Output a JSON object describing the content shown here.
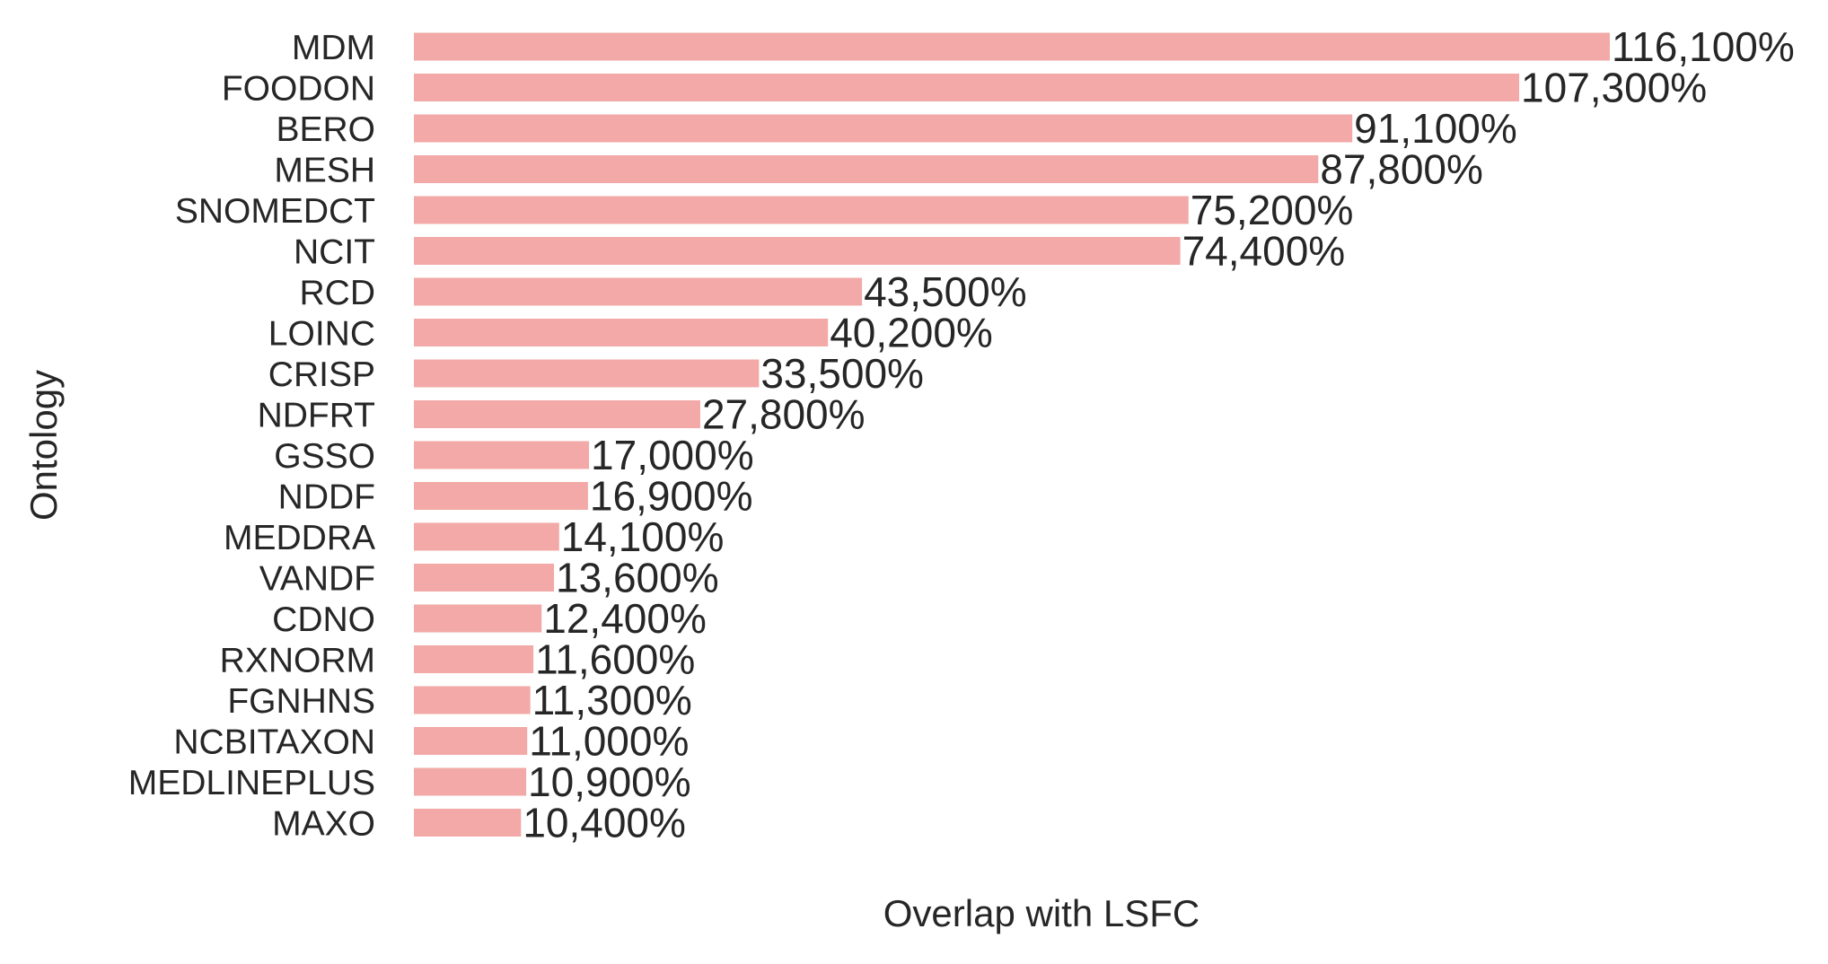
{
  "chart_data": {
    "type": "bar",
    "orientation": "horizontal",
    "xlabel": "Overlap with LSFC",
    "ylabel": "Ontology",
    "categories": [
      "MDM",
      "FOODON",
      "BERO",
      "MESH",
      "SNOMEDCT",
      "NCIT",
      "RCD",
      "LOINC",
      "CRISP",
      "NDFRT",
      "GSSO",
      "NDDF",
      "MEDDRA",
      "VANDF",
      "CDNO",
      "RXNORM",
      "FGNHNS",
      "NCBITAXON",
      "MEDLINEPLUS",
      "MAXO"
    ],
    "values": [
      116.1,
      107.3,
      91.1,
      87.8,
      75.2,
      74.4,
      43.5,
      40.2,
      33.5,
      27.8,
      17.0,
      16.9,
      14.1,
      13.6,
      12.4,
      11.6,
      11.3,
      11.0,
      10.9,
      10.4
    ],
    "value_labels": [
      "116,100%",
      "107,300%",
      "91,100%",
      "87,800%",
      "75,200%",
      "74,400%",
      "43,500%",
      "40,200%",
      "33,500%",
      "27,800%",
      "17,000%",
      "16,900%",
      "14,100%",
      "13,600%",
      "12,400%",
      "11,600%",
      "11,300%",
      "11,000%",
      "10,900%",
      "10,400%"
    ],
    "bar_color": "#f2a9a7",
    "text_color": "#262626",
    "grid": false,
    "legend": "none"
  }
}
